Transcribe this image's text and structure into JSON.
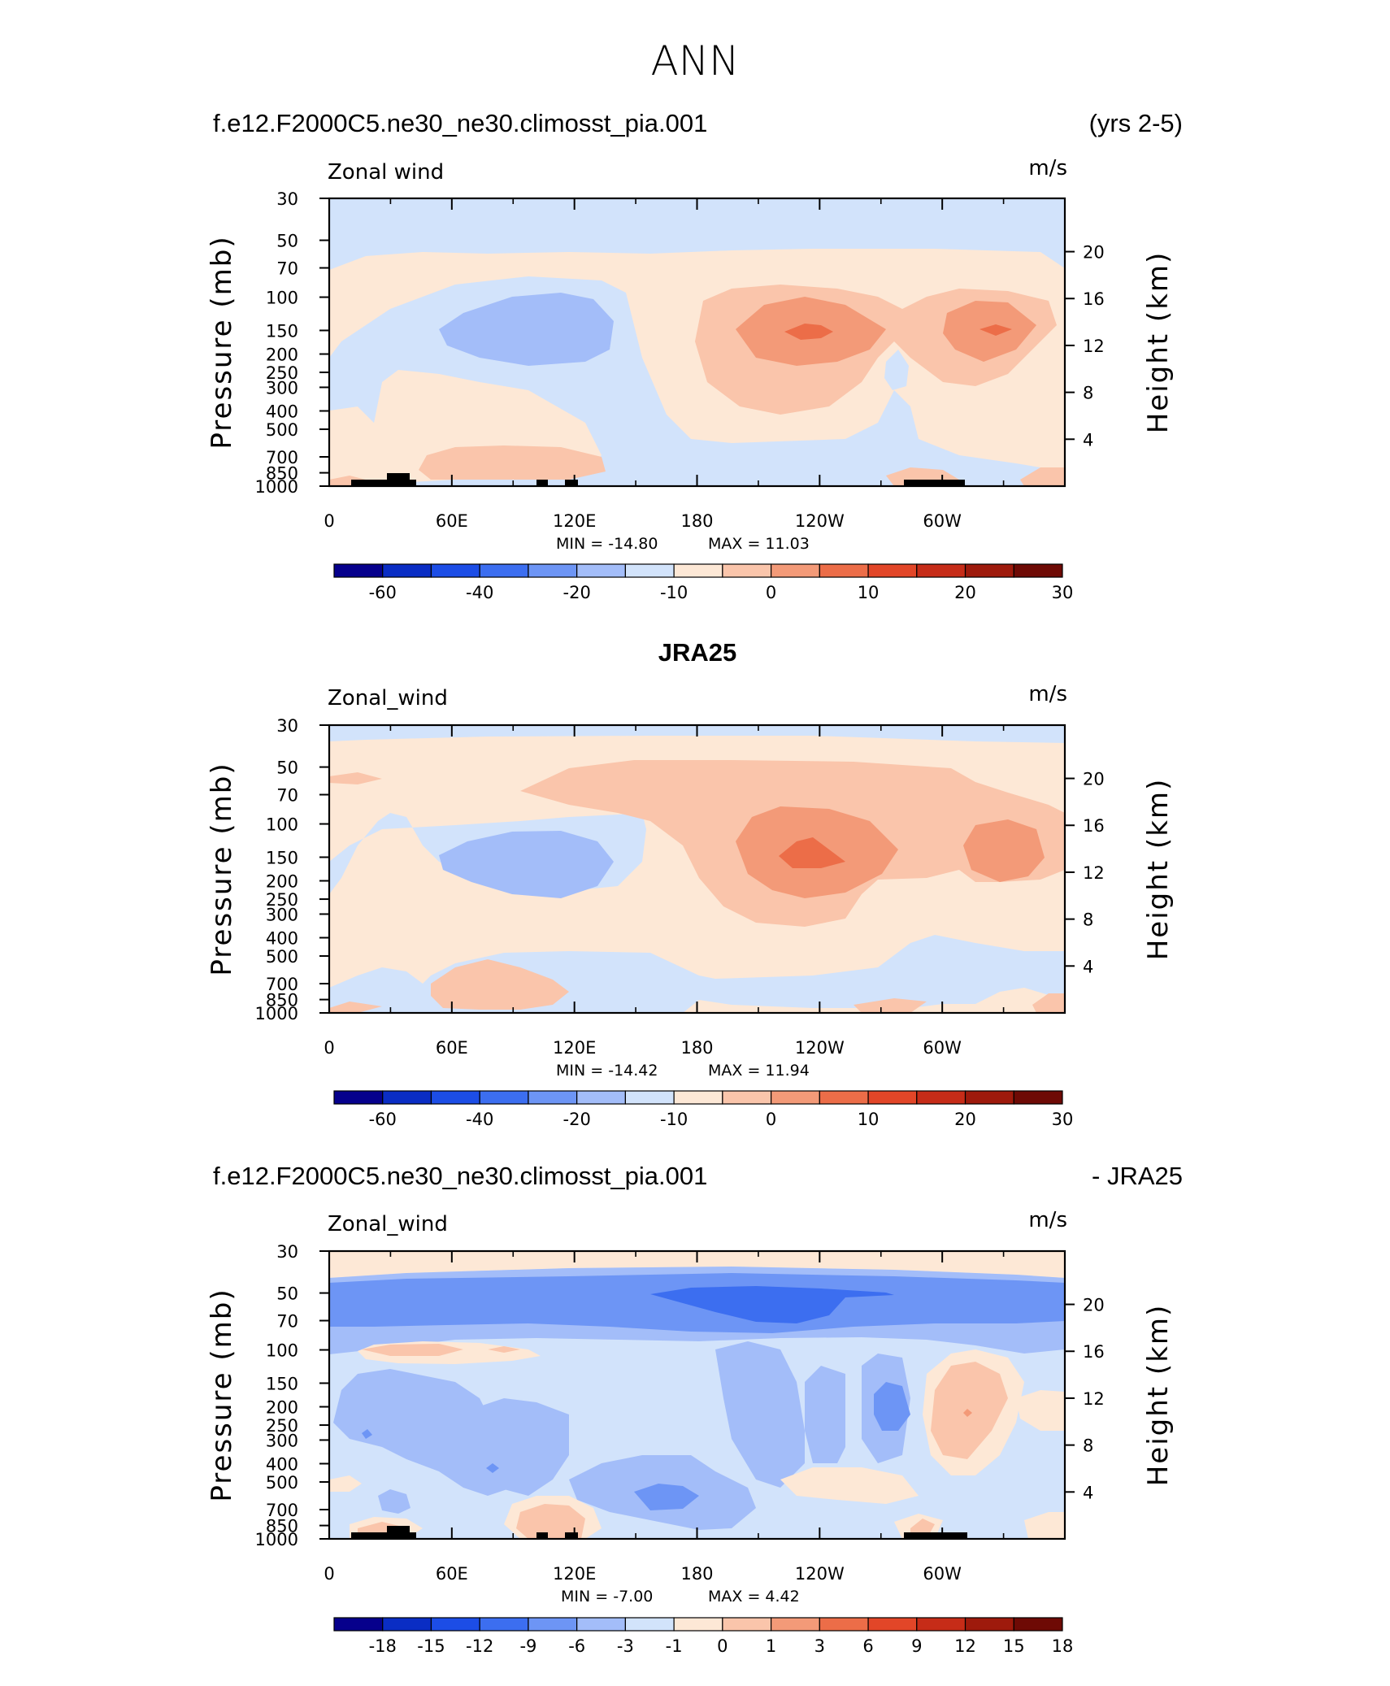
{
  "title": "ANN",
  "chart_data": [
    {
      "type": "contour",
      "left_title": "f.e12.F2000C5.ne30_ne30.climosst_pia.001",
      "right_title": "(yrs 2-5)",
      "field_label": "Zonal wind",
      "units": "m/s",
      "ylabel_left": "Pressure (mb)",
      "ylabel_right": "Height (km)",
      "xticks": [
        "0",
        "60E",
        "120E",
        "180",
        "120W",
        "60W"
      ],
      "xtick_lon": [
        0,
        60,
        120,
        180,
        240,
        300
      ],
      "xlim": [
        0,
        360
      ],
      "pressure_levels": [
        "30",
        "50",
        "70",
        "100",
        "150",
        "200",
        "250",
        "300",
        "400",
        "500",
        "700",
        "850",
        "1000"
      ],
      "height_ticks": [
        "20",
        "16",
        "12",
        "8",
        "4"
      ],
      "min_label": "MIN = -14.80",
      "max_label": "MAX = 11.03",
      "min": -14.8,
      "max": 11.03,
      "colorbar_labels": [
        "-60",
        "-40",
        "-20",
        "-10",
        "0",
        "10",
        "20",
        "30"
      ],
      "colorbar_colors": [
        "#06008c",
        "#0a2dc4",
        "#1c4de6",
        "#3c6ef0",
        "#6d95f5",
        "#a3bdf9",
        "#d2e3fb",
        "#fde8d6",
        "#fac5ab",
        "#f39a78",
        "#ec6d48",
        "#e24628",
        "#c62c18",
        "#9e1a0c",
        "#6e0a05"
      ]
    },
    {
      "type": "contour",
      "center_title": "JRA25",
      "field_label": "Zonal_wind",
      "units": "m/s",
      "ylabel_left": "Pressure (mb)",
      "ylabel_right": "Height (km)",
      "min_label": "MIN = -14.42",
      "max_label": "MAX = 11.94",
      "min": -14.42,
      "max": 11.94
    },
    {
      "type": "contour",
      "left_title": "f.e12.F2000C5.ne30_ne30.climosst_pia.001",
      "right_title": "- JRA25",
      "field_label": "Zonal_wind",
      "units": "m/s",
      "ylabel_left": "Pressure (mb)",
      "ylabel_right": "Height (km)",
      "min_label": "MIN = -7.00",
      "max_label": "MAX = 4.42",
      "min": -7.0,
      "max": 4.42,
      "colorbar_labels": [
        "-18",
        "-15",
        "-12",
        "-9",
        "-6",
        "-3",
        "-1",
        "0",
        "1",
        "3",
        "6",
        "9",
        "12",
        "15",
        "18"
      ]
    }
  ]
}
